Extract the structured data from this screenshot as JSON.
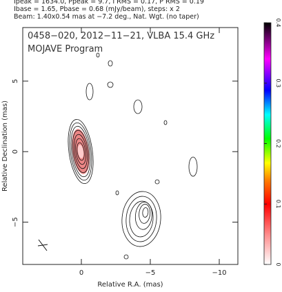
{
  "chart_data": {
    "type": "contour",
    "header": [
      "Ipeak = 1634.0, Ppeak = 9.7, I RMS = 0.17, P RMS = 0.19",
      "Ibase = 1.65, Pbase = 0.68 (mJy/beam), steps: x 2",
      "Beam: 1.40x0.54 mas at −7.2 deg., Nat. Wgt. (no taper)"
    ],
    "title": "0458−020, 2012−11−21, VLBA 15.4 GHz",
    "subtitle": "MOJAVE Program",
    "xlabel": "Relative R.A. (mas)",
    "ylabel": "Relative Declination (mas)",
    "xlim": [
      4.25,
      -11.35
    ],
    "xticks": [
      0,
      {
        "value": -5,
        "label": "−5"
      },
      {
        "value": -10,
        "label": "−10"
      }
    ],
    "ylim": [
      -8.0,
      8.8
    ],
    "yticks": [
      {
        "value": -5,
        "label": "−5"
      },
      0,
      5
    ],
    "colorbar": {
      "lim": [
        0,
        0.4
      ],
      "ticks": [
        0,
        0.1,
        0.2,
        0.3,
        0.4
      ]
    }
  }
}
